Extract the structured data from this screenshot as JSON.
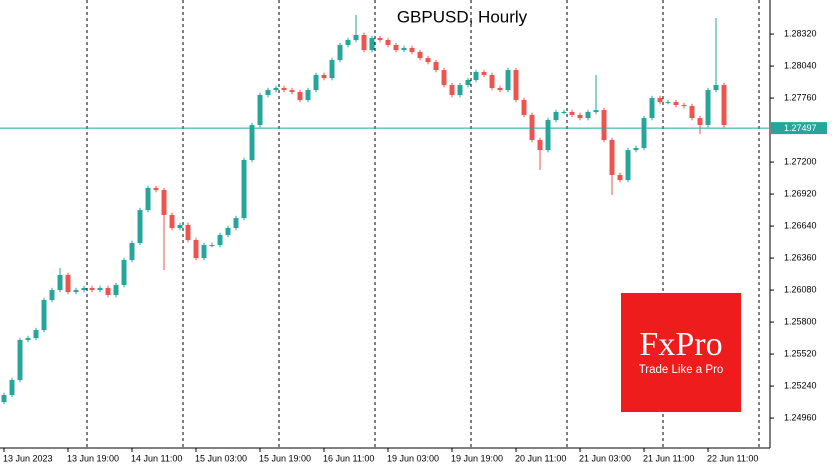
{
  "chart_data": {
    "type": "candlestick",
    "title": "GBPUSD, Hourly",
    "up_color": "#26a69a",
    "down_color": "#ef5350",
    "x": [
      0,
      2,
      4,
      6,
      8,
      10,
      12,
      14,
      16,
      18,
      20,
      22,
      24,
      26,
      28,
      30,
      32,
      34,
      36,
      38,
      40,
      42,
      44,
      46,
      48,
      50,
      52,
      54,
      56,
      58,
      60,
      62,
      64,
      66,
      68,
      70,
      72,
      74,
      76,
      78,
      80,
      82,
      84,
      86,
      88,
      90,
      92,
      94,
      96,
      98,
      100,
      102,
      104,
      106,
      108,
      110,
      112,
      114,
      116,
      118,
      120,
      122,
      124,
      126,
      128,
      130,
      132,
      134,
      136,
      138,
      140,
      142,
      144,
      146,
      148,
      150,
      152,
      154,
      156,
      158,
      160,
      162,
      164,
      166,
      168,
      170,
      172,
      174,
      176,
      178,
      180
    ],
    "open": [
      1.251,
      1.25162,
      1.25293,
      1.25643,
      1.2566,
      1.2573,
      1.25993,
      1.2608,
      1.26212,
      1.26063,
      1.2608,
      1.26098,
      1.2608,
      1.26098,
      1.26037,
      1.26124,
      1.26343,
      1.26492,
      1.2678,
      1.26973,
      1.26955,
      1.26737,
      1.26623,
      1.26649,
      1.26518,
      1.2636,
      1.26474,
      1.26474,
      1.26562,
      1.26623,
      1.2671,
      1.27218,
      1.27524,
      1.27787,
      1.2783,
      1.27848,
      1.2783,
      1.27813,
      1.27743,
      1.2783,
      1.27962,
      1.27935,
      1.28093,
      1.28224,
      1.28268,
      1.28312,
      1.2818,
      1.28285,
      1.28268,
      1.28224,
      1.2818,
      1.28198,
      1.28163,
      1.2811,
      1.28075,
      1.28005,
      1.27874,
      1.27787,
      1.27874,
      1.27918,
      1.27988,
      1.27962,
      1.27848,
      1.2783,
      1.28005,
      1.27743,
      1.27612,
      1.27393,
      1.27305,
      1.27568,
      1.27638,
      1.27638,
      1.27612,
      1.27585,
      1.27638,
      1.27655,
      1.27393,
      1.27087,
      1.27043,
      1.27305,
      1.27323,
      1.27585,
      1.2776,
      1.27725,
      1.27725,
      1.27699,
      1.2769,
      1.27585,
      1.27524,
      1.2783,
      1.27874
    ],
    "high": [
      1.25182,
      1.25313,
      1.25663,
      1.2568,
      1.2575,
      1.26013,
      1.261,
      1.26273,
      1.26232,
      1.261,
      1.26118,
      1.26118,
      1.26118,
      1.26118,
      1.26144,
      1.26363,
      1.26512,
      1.268,
      1.26993,
      1.26993,
      1.26975,
      1.26757,
      1.26669,
      1.26669,
      1.26538,
      1.26494,
      1.26494,
      1.26582,
      1.26643,
      1.2673,
      1.27238,
      1.27544,
      1.27807,
      1.2785,
      1.27868,
      1.27868,
      1.2785,
      1.27833,
      1.2785,
      1.27982,
      1.27982,
      1.28113,
      1.28244,
      1.28288,
      1.28487,
      1.28332,
      1.28305,
      1.28305,
      1.28288,
      1.28244,
      1.28218,
      1.28218,
      1.28183,
      1.2813,
      1.28095,
      1.28025,
      1.27894,
      1.27894,
      1.27938,
      1.28008,
      1.28008,
      1.27982,
      1.27868,
      1.28025,
      1.28025,
      1.27763,
      1.27632,
      1.27413,
      1.27588,
      1.27658,
      1.27658,
      1.27658,
      1.27632,
      1.27658,
      1.27962,
      1.27675,
      1.27413,
      1.27107,
      1.27325,
      1.27343,
      1.27605,
      1.2778,
      1.2778,
      1.27745,
      1.27745,
      1.27719,
      1.2771,
      1.27605,
      1.2785,
      1.2846,
      1.27894
    ],
    "low": [
      1.2508,
      1.25142,
      1.25273,
      1.25623,
      1.2564,
      1.2571,
      1.25973,
      1.2606,
      1.26043,
      1.26043,
      1.2606,
      1.2606,
      1.2606,
      1.26017,
      1.26017,
      1.26104,
      1.26323,
      1.26472,
      1.2676,
      1.26935,
      1.26255,
      1.26603,
      1.26603,
      1.26498,
      1.2634,
      1.2634,
      1.26454,
      1.26454,
      1.26542,
      1.26603,
      1.2669,
      1.27198,
      1.27504,
      1.27767,
      1.2781,
      1.2781,
      1.27793,
      1.27723,
      1.27723,
      1.2781,
      1.27915,
      1.27915,
      1.28073,
      1.28204,
      1.28248,
      1.2816,
      1.2816,
      1.28248,
      1.28204,
      1.2816,
      1.2816,
      1.28143,
      1.2809,
      1.28055,
      1.27985,
      1.27854,
      1.27767,
      1.27767,
      1.27854,
      1.27898,
      1.27942,
      1.27828,
      1.2781,
      1.2781,
      1.27723,
      1.27592,
      1.27373,
      1.2713,
      1.27285,
      1.27548,
      1.27618,
      1.27592,
      1.27565,
      1.27565,
      1.27618,
      1.27373,
      1.26912,
      1.27023,
      1.27023,
      1.27285,
      1.27303,
      1.27565,
      1.27705,
      1.27705,
      1.27679,
      1.2767,
      1.27565,
      1.27443,
      1.27504,
      1.2781,
      1.27504
    ],
    "close": [
      1.25162,
      1.25293,
      1.25643,
      1.2566,
      1.2573,
      1.25993,
      1.2608,
      1.26212,
      1.26063,
      1.2608,
      1.26098,
      1.2608,
      1.26098,
      1.26037,
      1.26124,
      1.26343,
      1.26492,
      1.2678,
      1.26973,
      1.26955,
      1.26737,
      1.26623,
      1.26649,
      1.26518,
      1.2636,
      1.26474,
      1.26474,
      1.26562,
      1.26623,
      1.2671,
      1.27218,
      1.27524,
      1.27787,
      1.2783,
      1.27848,
      1.2783,
      1.27813,
      1.27743,
      1.2783,
      1.27962,
      1.27935,
      1.28093,
      1.28224,
      1.28268,
      1.28312,
      1.2818,
      1.28285,
      1.28268,
      1.28224,
      1.2818,
      1.28198,
      1.28163,
      1.2811,
      1.28075,
      1.28005,
      1.27874,
      1.27787,
      1.27874,
      1.27918,
      1.27988,
      1.27962,
      1.27848,
      1.2783,
      1.28005,
      1.27743,
      1.27612,
      1.27393,
      1.27305,
      1.27568,
      1.27638,
      1.27638,
      1.27612,
      1.27585,
      1.27638,
      1.27655,
      1.27393,
      1.27087,
      1.27043,
      1.27305,
      1.27323,
      1.27585,
      1.2776,
      1.27725,
      1.27725,
      1.27699,
      1.2769,
      1.27585,
      1.27524,
      1.2783,
      1.27874,
      1.27524
    ],
    "xlim": [
      -1,
      191.5
    ],
    "xticks": [
      {
        "value": 0,
        "label": "13 Jun 2023"
      },
      {
        "value": 16,
        "label": "13 Jun 19:00"
      },
      {
        "value": 32,
        "label": "14 Jun 11:00"
      },
      {
        "value": 48,
        "label": "15 Jun 03:00"
      },
      {
        "value": 64,
        "label": "15 Jun 19:00"
      },
      {
        "value": 80,
        "label": "16 Jun 11:00"
      },
      {
        "value": 96,
        "label": "19 Jun 03:00"
      },
      {
        "value": 112,
        "label": "19 Jun 19:00"
      },
      {
        "value": 128,
        "label": "20 Jun 11:00"
      },
      {
        "value": 144,
        "label": "21 Jun 03:00"
      },
      {
        "value": 160,
        "label": "21 Jun 11:00"
      },
      {
        "value": 176,
        "label": "22 Jun 11:00"
      }
    ],
    "ylim": [
      1.24698,
      1.28618
    ],
    "yticks": [
      {
        "value": 1.2832,
        "label": "1.28320"
      },
      {
        "value": 1.2804,
        "label": "1.28040"
      },
      {
        "value": 1.2776,
        "label": "1.27760"
      },
      {
        "value": 1.272,
        "label": "1.27200"
      },
      {
        "value": 1.2692,
        "label": "1.26920"
      },
      {
        "value": 1.2664,
        "label": "1.26640"
      },
      {
        "value": 1.2636,
        "label": "1.26360"
      },
      {
        "value": 1.2608,
        "label": "1.26080"
      },
      {
        "value": 1.258,
        "label": "1.25800"
      },
      {
        "value": 1.2552,
        "label": "1.25520"
      },
      {
        "value": 1.2524,
        "label": "1.25240"
      },
      {
        "value": 1.2496,
        "label": "1.24960"
      }
    ],
    "price_line": {
      "value": 1.27497,
      "color": "#26a69a"
    }
  },
  "logo": {
    "brand": "FxPro",
    "tagline": "Trade Like a Pro"
  }
}
